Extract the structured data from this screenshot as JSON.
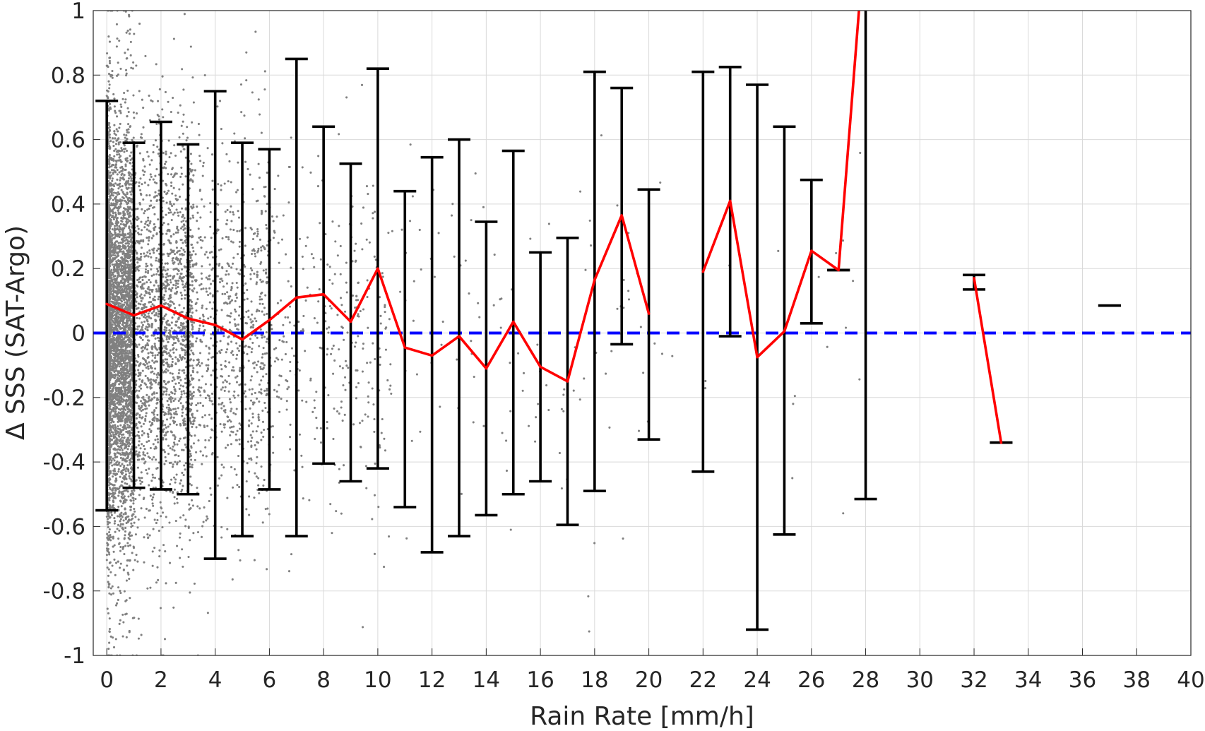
{
  "chart_data": {
    "type": "scatter",
    "title": "",
    "xlabel": "Rain Rate [mm/h]",
    "ylabel": "Δ SSS (SAT-Argo)",
    "xlim": [
      -0.5,
      40
    ],
    "ylim": [
      -1,
      1
    ],
    "x_ticks": [
      0,
      2,
      4,
      6,
      8,
      10,
      12,
      14,
      16,
      18,
      20,
      22,
      24,
      26,
      28,
      30,
      32,
      34,
      36,
      38,
      40
    ],
    "y_ticks": [
      -1,
      -0.8,
      -0.6,
      -0.4,
      -0.2,
      0,
      0.2,
      0.4,
      0.6,
      0.8,
      1
    ],
    "x_tick_labels": [
      "0",
      "2",
      "4",
      "6",
      "8",
      "10",
      "12",
      "14",
      "16",
      "18",
      "20",
      "22",
      "24",
      "26",
      "28",
      "30",
      "32",
      "34",
      "36",
      "38",
      "40"
    ],
    "y_tick_labels": [
      "-1",
      "-0.8",
      "-0.6",
      "-0.4",
      "-0.2",
      "0",
      "0.2",
      "0.4",
      "0.6",
      "0.8",
      "1"
    ],
    "grid": true,
    "legend": "none",
    "series": [
      {
        "kind": "scatter",
        "color": "#808080",
        "description_density": "dense near x=0, sparse beyond x=10",
        "points": []
      },
      {
        "kind": "line-with-gaps",
        "color": "#ff0000",
        "segments": [
          [
            [
              0,
              0.09
            ],
            [
              1,
              0.055
            ],
            [
              2,
              0.085
            ],
            [
              3,
              0.045
            ],
            [
              4,
              0.025
            ],
            [
              5,
              -0.02
            ],
            [
              6,
              0.04
            ],
            [
              7,
              0.11
            ],
            [
              8,
              0.12
            ],
            [
              9,
              0.035
            ],
            [
              10,
              0.2
            ],
            [
              11,
              -0.045
            ],
            [
              12,
              -0.07
            ],
            [
              13,
              -0.01
            ],
            [
              14,
              -0.11
            ],
            [
              15,
              0.035
            ],
            [
              16,
              -0.105
            ],
            [
              17,
              -0.15
            ],
            [
              18,
              0.165
            ],
            [
              19,
              0.365
            ],
            [
              20,
              0.06
            ]
          ],
          [
            [
              22,
              0.19
            ],
            [
              23,
              0.41
            ],
            [
              24,
              -0.075
            ],
            [
              25,
              0.005
            ],
            [
              26,
              0.255
            ],
            [
              27,
              0.195
            ],
            [
              27.8,
              1.05
            ]
          ],
          [
            [
              32,
              0.17
            ],
            [
              33,
              -0.34
            ]
          ]
        ]
      },
      {
        "kind": "errorbar",
        "color": "#000000",
        "bars": [
          {
            "x": 0,
            "low": -0.55,
            "high": 0.72
          },
          {
            "x": 1,
            "low": -0.48,
            "high": 0.59
          },
          {
            "x": 2,
            "low": -0.485,
            "high": 0.655
          },
          {
            "x": 3,
            "low": -0.5,
            "high": 0.585
          },
          {
            "x": 4,
            "low": -0.7,
            "high": 0.75
          },
          {
            "x": 5,
            "low": -0.63,
            "high": 0.59
          },
          {
            "x": 6,
            "low": -0.485,
            "high": 0.57
          },
          {
            "x": 7,
            "low": -0.63,
            "high": 0.85
          },
          {
            "x": 8,
            "low": -0.405,
            "high": 0.64
          },
          {
            "x": 9,
            "low": -0.46,
            "high": 0.525
          },
          {
            "x": 10,
            "low": -0.42,
            "high": 0.82
          },
          {
            "x": 11,
            "low": -0.54,
            "high": 0.44
          },
          {
            "x": 12,
            "low": -0.68,
            "high": 0.545
          },
          {
            "x": 13,
            "low": -0.63,
            "high": 0.6
          },
          {
            "x": 14,
            "low": -0.565,
            "high": 0.345
          },
          {
            "x": 15,
            "low": -0.5,
            "high": 0.565
          },
          {
            "x": 16,
            "low": -0.46,
            "high": 0.25
          },
          {
            "x": 17,
            "low": -0.595,
            "high": 0.295
          },
          {
            "x": 18,
            "low": -0.49,
            "high": 0.81
          },
          {
            "x": 19,
            "low": -0.035,
            "high": 0.76
          },
          {
            "x": 20,
            "low": -0.33,
            "high": 0.445
          },
          {
            "x": 22,
            "low": -0.43,
            "high": 0.81
          },
          {
            "x": 23,
            "low": -0.01,
            "high": 0.825
          },
          {
            "x": 24,
            "low": -0.92,
            "high": 0.77
          },
          {
            "x": 25,
            "low": -0.625,
            "high": 0.64
          },
          {
            "x": 26,
            "low": 0.03,
            "high": 0.475
          },
          {
            "x": 27,
            "low": 0.195,
            "high": 0.195
          },
          {
            "x": 28,
            "low": -0.515,
            "high": 1.05
          },
          {
            "x": 32,
            "low": 0.135,
            "high": 0.18
          },
          {
            "x": 33,
            "low": -0.34,
            "high": -0.34
          },
          {
            "x": 37,
            "low": 0.085,
            "high": 0.085
          }
        ]
      },
      {
        "kind": "reference-line",
        "color": "#0000ff",
        "style": "dashed",
        "y": 0
      }
    ]
  }
}
